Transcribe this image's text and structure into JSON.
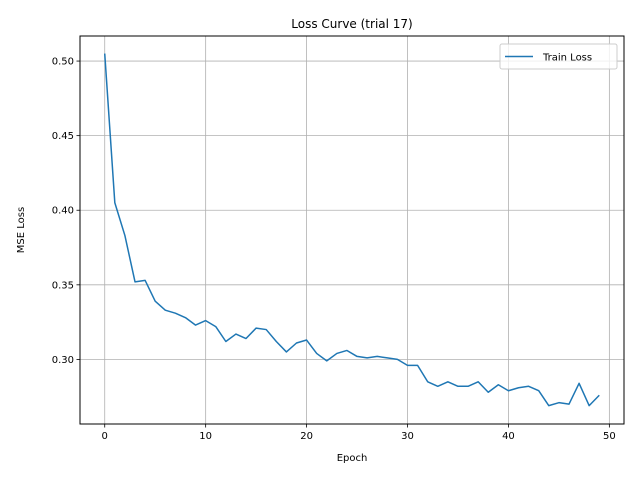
{
  "chart_data": {
    "type": "line",
    "title": "Loss Curve (trial 17)",
    "xlabel": "Epoch",
    "ylabel": "MSE Loss",
    "xlim": [
      -2.45,
      51.45
    ],
    "ylim": [
      0.2567,
      0.5168
    ],
    "xticks": [
      0,
      10,
      20,
      30,
      40,
      50
    ],
    "yticks": [
      0.3,
      0.35,
      0.4,
      0.45,
      0.5
    ],
    "grid": true,
    "legend": "top-right",
    "series": [
      {
        "name": "Train Loss",
        "color": "#1f77b4",
        "x": [
          0,
          1,
          2,
          3,
          4,
          5,
          6,
          7,
          8,
          9,
          10,
          11,
          12,
          13,
          14,
          15,
          16,
          17,
          18,
          19,
          20,
          21,
          22,
          23,
          24,
          25,
          26,
          27,
          28,
          29,
          30,
          31,
          32,
          33,
          34,
          35,
          36,
          37,
          38,
          39,
          40,
          41,
          42,
          43,
          44,
          45,
          46,
          47,
          48,
          49
        ],
        "y": [
          0.505,
          0.405,
          0.383,
          0.352,
          0.353,
          0.339,
          0.333,
          0.331,
          0.328,
          0.323,
          0.326,
          0.322,
          0.312,
          0.317,
          0.314,
          0.321,
          0.32,
          0.312,
          0.305,
          0.311,
          0.313,
          0.304,
          0.299,
          0.304,
          0.306,
          0.302,
          0.301,
          0.302,
          0.301,
          0.3,
          0.296,
          0.296,
          0.285,
          0.282,
          0.285,
          0.282,
          0.282,
          0.285,
          0.278,
          0.283,
          0.279,
          0.281,
          0.282,
          0.279,
          0.269,
          0.271,
          0.27,
          0.284,
          0.269,
          0.276
        ]
      }
    ]
  }
}
